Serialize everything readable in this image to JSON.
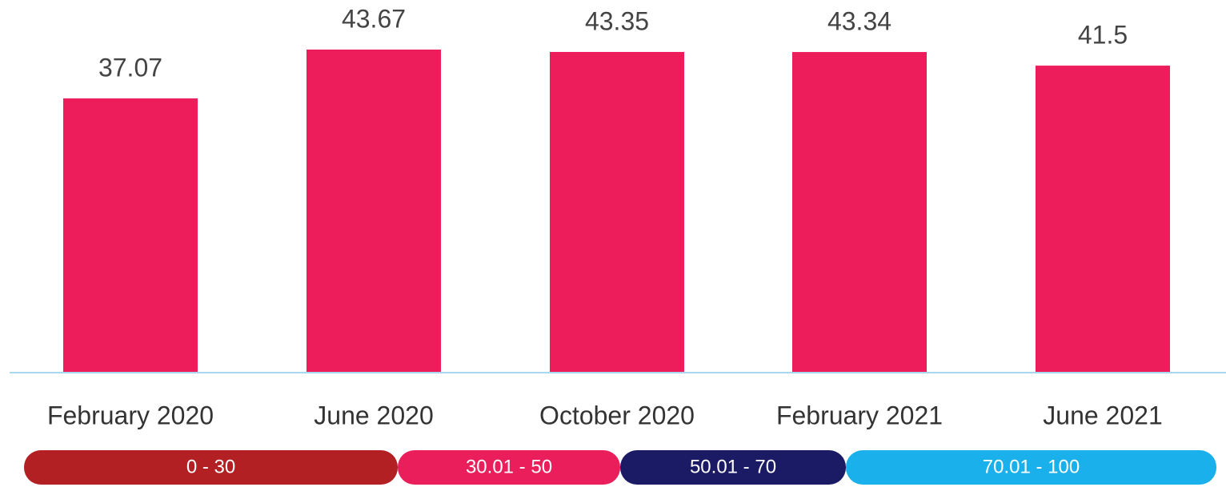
{
  "chart_data": {
    "type": "bar",
    "categories": [
      "February 2020",
      "June 2020",
      "October 2020",
      "February 2021",
      "June 2021"
    ],
    "values": [
      37.07,
      43.67,
      43.35,
      43.34,
      41.5
    ],
    "color": "#ed1c5b",
    "legend": [
      {
        "label": "0 - 30",
        "color": "#b22024"
      },
      {
        "label": "30.01 - 50",
        "color": "#e91e5a"
      },
      {
        "label": "50.01 - 70",
        "color": "#1b1a64"
      },
      {
        "label": "70.01 - 100",
        "color": "#1ab0ec"
      }
    ]
  }
}
